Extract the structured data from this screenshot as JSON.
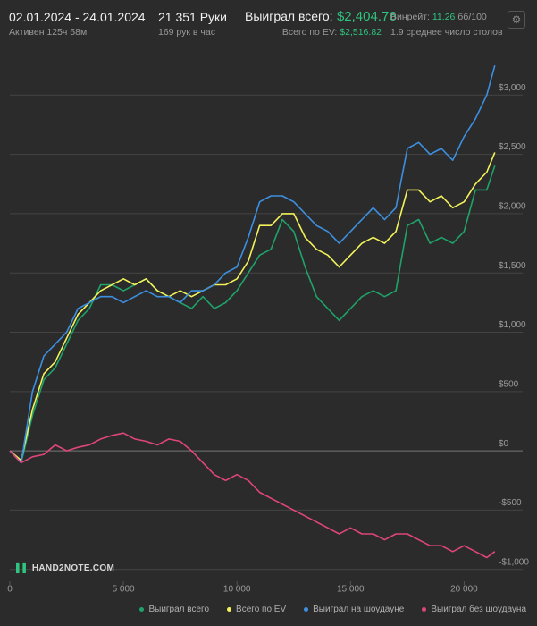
{
  "header": {
    "date_range": "02.01.2024 - 24.01.2024",
    "active": "Активен 125ч 58м",
    "hands": "21 351 Руки",
    "hands_per_hour": "169 рук в час",
    "won_label": "Выиграл всего:",
    "won_value": "$2,404.76",
    "ev_label": "Всего по EV:",
    "ev_value": "$2,516.82",
    "winrate_label": "Винрейт:",
    "winrate_value": "11.26",
    "winrate_unit": "бб/100",
    "tables": "1.9 среднее число столов",
    "watermark": "HAND2NOTE.COM"
  },
  "chart_data": {
    "type": "line",
    "x": [
      0,
      500,
      1000,
      1500,
      2000,
      2500,
      3000,
      3500,
      4000,
      4500,
      5000,
      5500,
      6000,
      6500,
      7000,
      7500,
      8000,
      8500,
      9000,
      9500,
      10000,
      10500,
      11000,
      11500,
      12000,
      12500,
      13000,
      13500,
      14000,
      14500,
      15000,
      15500,
      16000,
      16500,
      17000,
      17500,
      18000,
      18500,
      19000,
      19500,
      20000,
      20500,
      21000,
      21351
    ],
    "series": [
      {
        "name": "Выиграл всего",
        "color": "#1fa36a",
        "values": [
          0,
          -100,
          300,
          600,
          700,
          900,
          1100,
          1200,
          1400,
          1400,
          1350,
          1400,
          1450,
          1350,
          1300,
          1250,
          1200,
          1300,
          1200,
          1250,
          1350,
          1500,
          1650,
          1700,
          1950,
          1850,
          1550,
          1300,
          1200,
          1100,
          1200,
          1300,
          1350,
          1300,
          1350,
          1900,
          1950,
          1750,
          1800,
          1750,
          1850,
          2200,
          2200,
          2405
        ]
      },
      {
        "name": "Всего по EV",
        "color": "#f2f25a",
        "values": [
          0,
          -80,
          350,
          650,
          750,
          950,
          1150,
          1250,
          1350,
          1400,
          1450,
          1400,
          1450,
          1350,
          1300,
          1350,
          1300,
          1350,
          1400,
          1400,
          1450,
          1600,
          1900,
          1900,
          2000,
          2000,
          1800,
          1700,
          1650,
          1550,
          1650,
          1750,
          1800,
          1750,
          1850,
          2200,
          2200,
          2100,
          2150,
          2050,
          2100,
          2250,
          2350,
          2517
        ]
      },
      {
        "name": "Выиграл на шоудауне",
        "color": "#3d8fe0",
        "values": [
          0,
          -100,
          500,
          800,
          900,
          1000,
          1200,
          1250,
          1300,
          1300,
          1250,
          1300,
          1350,
          1300,
          1300,
          1250,
          1350,
          1350,
          1400,
          1500,
          1550,
          1800,
          2100,
          2150,
          2150,
          2100,
          2000,
          1900,
          1850,
          1750,
          1850,
          1950,
          2050,
          1950,
          2050,
          2550,
          2600,
          2500,
          2550,
          2450,
          2650,
          2800,
          3000,
          3250
        ]
      },
      {
        "name": "Выиграл без шоудауна",
        "color": "#e0457b",
        "values": [
          0,
          -100,
          -50,
          -30,
          50,
          0,
          30,
          50,
          100,
          130,
          150,
          100,
          80,
          50,
          100,
          80,
          0,
          -100,
          -200,
          -250,
          -200,
          -250,
          -350,
          -400,
          -450,
          -500,
          -550,
          -600,
          -650,
          -700,
          -650,
          -700,
          -700,
          -750,
          -700,
          -700,
          -750,
          -800,
          -800,
          -850,
          -800,
          -850,
          -900,
          -850
        ]
      }
    ],
    "xlim": [
      0,
      21400
    ],
    "ylim": [
      -1100,
      3500
    ],
    "xticks": [
      0,
      {
        "value": 5000,
        "label": "5 000"
      },
      {
        "value": 10000,
        "label": "10 000"
      },
      {
        "value": 15000,
        "label": "15 000"
      },
      {
        "value": 20000,
        "label": "20 000"
      }
    ],
    "yticks": [
      {
        "value": -1000,
        "label": "-$1,000"
      },
      {
        "value": -500,
        "label": "-$500"
      },
      {
        "value": 0,
        "label": "$0"
      },
      {
        "value": 500,
        "label": "$500"
      },
      {
        "value": 1000,
        "label": "$1,000"
      },
      {
        "value": 1500,
        "label": "$1,500"
      },
      {
        "value": 2000,
        "label": "$2,000"
      },
      {
        "value": 2500,
        "label": "$2,500"
      },
      {
        "value": 3000,
        "label": "$3,000"
      }
    ],
    "grid": true
  }
}
